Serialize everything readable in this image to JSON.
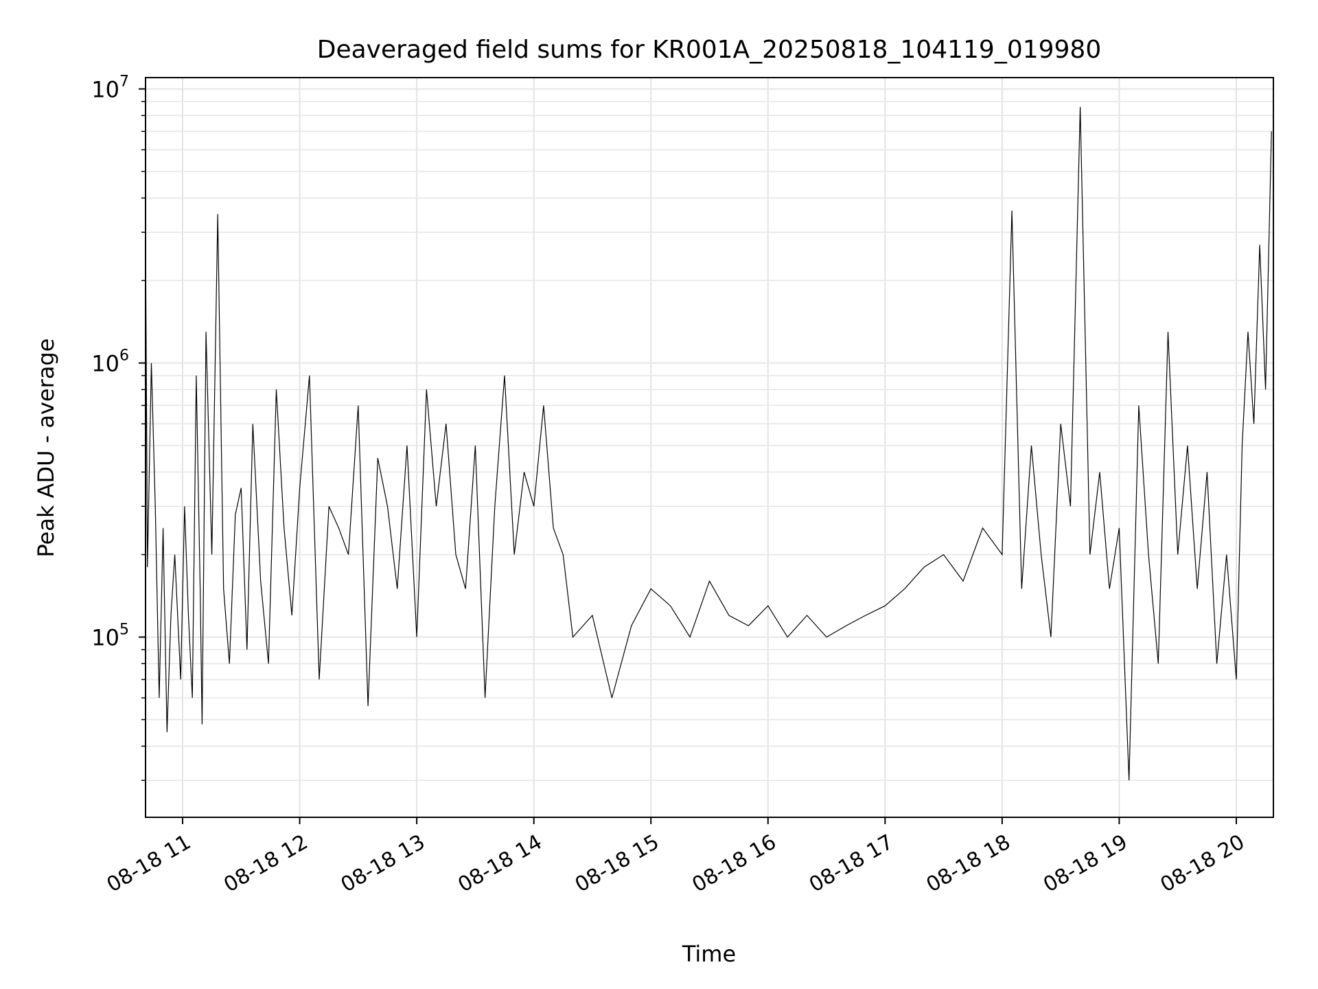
{
  "chart_data": {
    "type": "line",
    "title": "Deaveraged field sums for KR001A_20250818_104119_019980",
    "xlabel": "Time",
    "ylabel": "Peak ADU - average",
    "yscale": "log",
    "ylim": [
      22000,
      11000000
    ],
    "xlim": [
      "2025-08-18 10:41",
      "2025-08-18 20:19"
    ],
    "grid": true,
    "line_color": "#000000",
    "x_ticks": [
      {
        "t": "2025-08-18 11:00",
        "label": "08-18 11"
      },
      {
        "t": "2025-08-18 12:00",
        "label": "08-18 12"
      },
      {
        "t": "2025-08-18 13:00",
        "label": "08-18 13"
      },
      {
        "t": "2025-08-18 14:00",
        "label": "08-18 14"
      },
      {
        "t": "2025-08-18 15:00",
        "label": "08-18 15"
      },
      {
        "t": "2025-08-18 16:00",
        "label": "08-18 16"
      },
      {
        "t": "2025-08-18 17:00",
        "label": "08-18 17"
      },
      {
        "t": "2025-08-18 18:00",
        "label": "08-18 18"
      },
      {
        "t": "2025-08-18 19:00",
        "label": "08-18 19"
      },
      {
        "t": "2025-08-18 20:00",
        "label": "08-18 20"
      }
    ],
    "y_ticks": [
      {
        "value": 100000,
        "base": "10",
        "exp": "5"
      },
      {
        "value": 1000000,
        "base": "10",
        "exp": "6"
      },
      {
        "value": 10000000,
        "base": "10",
        "exp": "7"
      }
    ],
    "series": [
      {
        "x": [
          "2025-08-18 10:41",
          "2025-08-18 10:42",
          "2025-08-18 10:44",
          "2025-08-18 10:46",
          "2025-08-18 10:48",
          "2025-08-18 10:50",
          "2025-08-18 10:52",
          "2025-08-18 10:54",
          "2025-08-18 10:56",
          "2025-08-18 10:59",
          "2025-08-18 11:01",
          "2025-08-18 11:03",
          "2025-08-18 11:05",
          "2025-08-18 11:07",
          "2025-08-18 11:09",
          "2025-08-18 11:10",
          "2025-08-18 11:12",
          "2025-08-18 11:15",
          "2025-08-18 11:18",
          "2025-08-18 11:21",
          "2025-08-18 11:24",
          "2025-08-18 11:27",
          "2025-08-18 11:30",
          "2025-08-18 11:33",
          "2025-08-18 11:36",
          "2025-08-18 11:40",
          "2025-08-18 11:44",
          "2025-08-18 11:48",
          "2025-08-18 11:52",
          "2025-08-18 11:56",
          "2025-08-18 12:00",
          "2025-08-18 12:05",
          "2025-08-18 12:10",
          "2025-08-18 12:15",
          "2025-08-18 12:20",
          "2025-08-18 12:25",
          "2025-08-18 12:30",
          "2025-08-18 12:35",
          "2025-08-18 12:40",
          "2025-08-18 12:45",
          "2025-08-18 12:50",
          "2025-08-18 12:55",
          "2025-08-18 13:00",
          "2025-08-18 13:05",
          "2025-08-18 13:10",
          "2025-08-18 13:15",
          "2025-08-18 13:20",
          "2025-08-18 13:25",
          "2025-08-18 13:30",
          "2025-08-18 13:35",
          "2025-08-18 13:40",
          "2025-08-18 13:45",
          "2025-08-18 13:50",
          "2025-08-18 13:55",
          "2025-08-18 14:00",
          "2025-08-18 14:05",
          "2025-08-18 14:10",
          "2025-08-18 14:15",
          "2025-08-18 14:20",
          "2025-08-18 14:30",
          "2025-08-18 14:40",
          "2025-08-18 14:50",
          "2025-08-18 15:00",
          "2025-08-18 15:10",
          "2025-08-18 15:20",
          "2025-08-18 15:30",
          "2025-08-18 15:40",
          "2025-08-18 15:50",
          "2025-08-18 16:00",
          "2025-08-18 16:10",
          "2025-08-18 16:20",
          "2025-08-18 16:30",
          "2025-08-18 16:40",
          "2025-08-18 16:50",
          "2025-08-18 17:00",
          "2025-08-18 17:10",
          "2025-08-18 17:20",
          "2025-08-18 17:30",
          "2025-08-18 17:40",
          "2025-08-18 17:50",
          "2025-08-18 18:00",
          "2025-08-18 18:05",
          "2025-08-18 18:10",
          "2025-08-18 18:15",
          "2025-08-18 18:20",
          "2025-08-18 18:25",
          "2025-08-18 18:30",
          "2025-08-18 18:35",
          "2025-08-18 18:40",
          "2025-08-18 18:45",
          "2025-08-18 18:50",
          "2025-08-18 18:55",
          "2025-08-18 19:00",
          "2025-08-18 19:05",
          "2025-08-18 19:10",
          "2025-08-18 19:15",
          "2025-08-18 19:20",
          "2025-08-18 19:25",
          "2025-08-18 19:30",
          "2025-08-18 19:35",
          "2025-08-18 19:40",
          "2025-08-18 19:45",
          "2025-08-18 19:50",
          "2025-08-18 19:55",
          "2025-08-18 20:00",
          "2025-08-18 20:03",
          "2025-08-18 20:06",
          "2025-08-18 20:09",
          "2025-08-18 20:12",
          "2025-08-18 20:15",
          "2025-08-18 20:18"
        ],
        "y": [
          3000000,
          180000,
          1000000,
          300000,
          60000,
          250000,
          45000,
          120000,
          200000,
          70000,
          300000,
          120000,
          60000,
          900000,
          150000,
          48000,
          1300000,
          200000,
          3500000,
          150000,
          80000,
          280000,
          350000,
          90000,
          600000,
          160000,
          80000,
          800000,
          250000,
          120000,
          350000,
          900000,
          70000,
          300000,
          250000,
          200000,
          700000,
          56000,
          450000,
          300000,
          150000,
          500000,
          100000,
          800000,
          300000,
          600000,
          200000,
          150000,
          500000,
          60000,
          300000,
          900000,
          200000,
          400000,
          300000,
          700000,
          250000,
          200000,
          100000,
          120000,
          60000,
          110000,
          150000,
          130000,
          100000,
          160000,
          120000,
          110000,
          130000,
          100000,
          120000,
          100000,
          110000,
          120000,
          130000,
          150000,
          180000,
          200000,
          160000,
          250000,
          200000,
          3600000,
          150000,
          500000,
          200000,
          100000,
          600000,
          300000,
          8600000,
          200000,
          400000,
          150000,
          250000,
          30000,
          700000,
          200000,
          80000,
          1300000,
          200000,
          500000,
          150000,
          400000,
          80000,
          200000,
          70000,
          500000,
          1300000,
          600000,
          2700000,
          800000,
          7000000
        ]
      }
    ]
  }
}
